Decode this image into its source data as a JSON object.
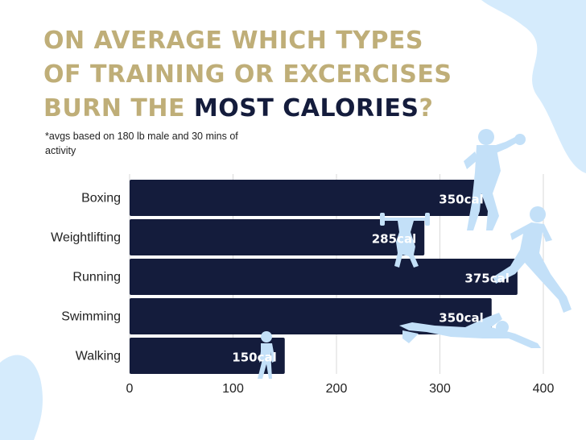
{
  "title": {
    "line1": "On average which types",
    "line2": "of training or excercises",
    "line3_gold": "burn the",
    "line3_dark": "most calories",
    "line3_end": "?"
  },
  "note": "*avgs based on 180 lb male and 30 mins of activity",
  "colors": {
    "bar": "#141c3c",
    "title_gold": "#bfae78",
    "title_dark": "#141c3c",
    "silhouette": "#c3e0f8",
    "blob": "#d5ebfc",
    "grid": "#d9d9d9"
  },
  "icons": [
    "boxer-icon",
    "weightlifter-icon",
    "runner-icon",
    "swimmer-icon",
    "walker-icon"
  ],
  "chart_data": {
    "type": "bar",
    "orientation": "horizontal",
    "categories": [
      "Boxing",
      "Weightlifting",
      "Running",
      "Swimming",
      "Walking"
    ],
    "values": [
      350,
      285,
      375,
      350,
      150
    ],
    "data_labels": [
      "350cal",
      "285cal",
      "375cal",
      "350cal",
      "150cal"
    ],
    "xlim": [
      0,
      400
    ],
    "xticks": [
      "0",
      "100",
      "200",
      "300",
      "400"
    ],
    "grid": "vertical"
  }
}
